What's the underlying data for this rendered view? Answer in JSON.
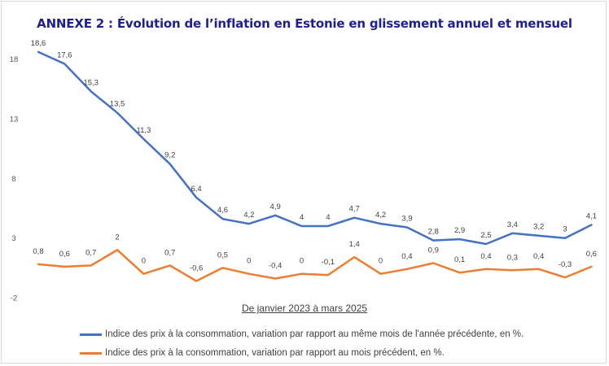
{
  "title": "ANNEXE 2 : Évolution de l’inflation en Estonie en glissement annuel et mensuel",
  "chart_data": {
    "type": "line",
    "title": "ANNEXE 2 : Évolution de l’inflation en Estonie en glissement annuel et mensuel",
    "xlabel": "De janvier 2023 à mars 2025",
    "ylabel": "",
    "ylim": [
      -2,
      19
    ],
    "yticks": [
      -2,
      3,
      8,
      13,
      18
    ],
    "ytick_labels": [
      "-2",
      "3",
      "8",
      "13",
      "18"
    ],
    "grid": false,
    "legend_position": "bottom",
    "x": [
      1,
      2,
      3,
      4,
      5,
      6,
      7,
      8,
      9,
      10,
      11,
      12,
      13,
      14,
      15,
      16,
      17,
      18,
      19,
      20,
      21,
      22
    ],
    "series": [
      {
        "name": "Indice des prix à la consommation, variation par rapport au même mois de l'année précédente, en %.",
        "color": "#4472c4",
        "values": [
          18.6,
          17.6,
          15.3,
          13.5,
          11.3,
          9.2,
          6.4,
          4.6,
          4.2,
          4.9,
          4,
          4,
          4.7,
          4.2,
          3.9,
          2.8,
          2.9,
          2.5,
          3.4,
          3.2,
          3,
          4.1
        ],
        "labels": [
          "18,6",
          "17,6",
          "15,3",
          "13,5",
          "11,3",
          "9,2",
          "6,4",
          "4,6",
          "4,2",
          "4,9",
          "4",
          "4",
          "4,7",
          "4,2",
          "3,9",
          "2,8",
          "2,9",
          "2,5",
          "3,4",
          "3,2",
          "3",
          "4,1"
        ]
      },
      {
        "name": "Indice des prix à la consommation, variation par rapport au mois précédent, en %.",
        "color": "#ed7d31",
        "values": [
          0.8,
          0.6,
          0.7,
          2,
          0,
          0.7,
          -0.6,
          0.5,
          0,
          -0.4,
          0,
          -0.1,
          1.4,
          0,
          0.4,
          0.9,
          0.1,
          0.4,
          0.3,
          0.4,
          -0.3,
          0.6
        ],
        "labels": [
          "0,8",
          "0,6",
          "0,7",
          "2",
          "0",
          "0,7",
          "-0,6",
          "0,5",
          "0",
          "-0,4",
          "0",
          "-0,1",
          "1,4",
          "0",
          "0,4",
          "0,9",
          "0,1",
          "0,4",
          "0,3",
          "0,4",
          "-0,3",
          "0,6"
        ]
      }
    ]
  }
}
